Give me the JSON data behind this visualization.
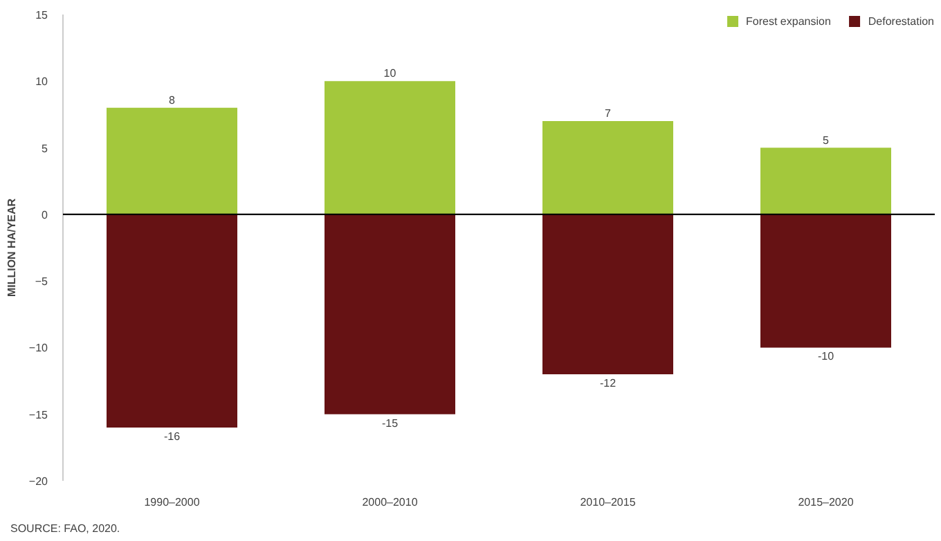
{
  "chart_data": {
    "type": "bar",
    "stacked": true,
    "ylabel": "MILLION HA/YEAR",
    "categories": [
      "1990–2000",
      "2000–2010",
      "2010–2015",
      "2015–2020"
    ],
    "series": [
      {
        "name": "Forest expansion",
        "color": "#a3c83c",
        "values": [
          8,
          10,
          7,
          5
        ]
      },
      {
        "name": "Deforestation",
        "color": "#661214",
        "values": [
          -16,
          -15,
          -12,
          -10
        ]
      }
    ],
    "ylim": [
      -20,
      15
    ],
    "yticks": [
      -20,
      -15,
      -10,
      -5,
      0,
      5,
      10,
      15
    ],
    "grid": false,
    "legend": "top right",
    "data_labels": true,
    "ref_lines": [
      {
        "axis": "y",
        "value": 0,
        "color": "#000000"
      }
    ],
    "annotations": [
      "SOURCE: FAO, 2020."
    ]
  }
}
